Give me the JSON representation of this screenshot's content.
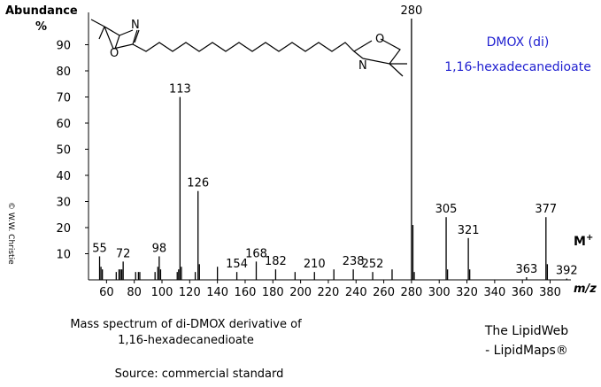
{
  "chart_data": {
    "type": "stick",
    "y_label": "Abundance",
    "y_unit": "%",
    "x_label": "m/z",
    "xlim": [
      47,
      395
    ],
    "ylim": [
      0,
      100
    ],
    "xticks": [
      60,
      80,
      100,
      120,
      140,
      160,
      180,
      200,
      220,
      240,
      260,
      280,
      300,
      320,
      340,
      360,
      380
    ],
    "yticks": [
      10,
      20,
      30,
      40,
      50,
      60,
      70,
      80,
      90
    ],
    "color": "#000000",
    "labeled_peaks": {
      "x": [
        55,
        72,
        98,
        113,
        126,
        154,
        168,
        182,
        210,
        238,
        252,
        280,
        305,
        321,
        363,
        377,
        392
      ],
      "values": [
        9,
        7,
        9,
        70,
        34,
        3,
        7,
        4,
        3,
        4,
        3,
        100,
        24,
        16,
        1,
        24,
        0.5
      ]
    },
    "minor_peaks": {
      "x": [
        56,
        57,
        67,
        69,
        70,
        71,
        81,
        83,
        84,
        95,
        97,
        99,
        111,
        112,
        114,
        124,
        127,
        140,
        196,
        224,
        266,
        281,
        282,
        306,
        322,
        378
      ],
      "values": [
        5,
        4,
        3,
        4,
        4,
        4,
        3,
        3,
        3,
        3,
        5,
        4,
        3,
        4,
        5,
        3,
        6,
        5,
        3,
        4,
        4,
        21,
        3,
        4,
        4,
        6
      ]
    },
    "molecular_ion": {
      "label": "M",
      "charge": "+"
    },
    "compound_name": [
      "DMOX (di)",
      "1,16-hexadecanedioate"
    ],
    "structure_atoms": [
      "N",
      "O",
      "N",
      "O"
    ],
    "copyright": "© W.W. Christie",
    "caption": [
      "Mass spectrum of di-DMOX derivative of",
      "1,16-hexadecanedioate"
    ],
    "source": "Source: commercial standard",
    "credit": [
      "The LipidWeb",
      "- LipidMaps®"
    ]
  }
}
